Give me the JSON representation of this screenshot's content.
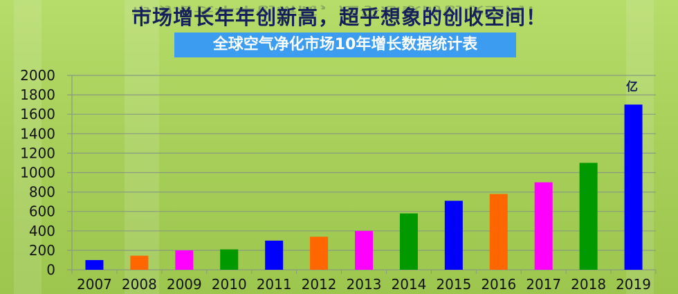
{
  "header": {
    "headline": "市场增长年年创新高，超乎想象的创收空间！",
    "subtitle": "全球空气净化市场10年增长数据统计表"
  },
  "chart_data": {
    "type": "bar",
    "title": "全球空气净化市场10年增长数据统计表",
    "unit_annotation": "亿",
    "categories": [
      "2007",
      "2008",
      "2009",
      "2010",
      "2011",
      "2012",
      "2013",
      "2014",
      "2015",
      "2016",
      "2017",
      "2018",
      "2019"
    ],
    "values": [
      100,
      145,
      200,
      210,
      300,
      340,
      400,
      580,
      710,
      780,
      900,
      1100,
      1700
    ],
    "bar_colors": [
      "#0000ff",
      "#ff6600",
      "#ff00ff",
      "#009900",
      "#0000ff",
      "#ff6600",
      "#ff00ff",
      "#009900",
      "#0000ff",
      "#ff6600",
      "#ff00ff",
      "#009900",
      "#0000ff"
    ],
    "ylim": [
      0,
      2000
    ],
    "yticks": [
      "0",
      "200",
      "400",
      "600",
      "800",
      "1000",
      "1200",
      "1400",
      "1600",
      "1800",
      "2000"
    ],
    "grid": true,
    "xlabel": "",
    "ylabel": ""
  }
}
